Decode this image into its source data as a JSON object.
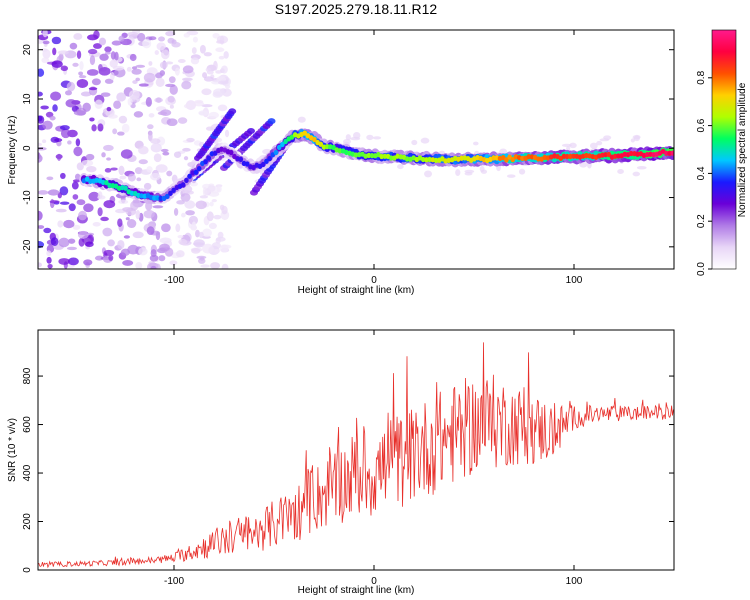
{
  "title": "S197.2025.279.18.11.R12",
  "chart_data": [
    {
      "type": "heatmap",
      "panel": "spectrogram",
      "title": "S197.2025.279.18.11.R12",
      "xlabel": "Height of straight line (km)",
      "ylabel": "Frequency (Hz)",
      "xlim": [
        -168,
        150
      ],
      "ylim": [
        -24.5,
        24
      ],
      "xticks": [
        -100,
        0,
        100
      ],
      "xtick_labels": [
        "-100",
        "0",
        "100"
      ],
      "yticks": [
        -20,
        -10,
        0,
        10,
        20
      ],
      "ytick_labels": [
        "-20",
        "-10",
        "0",
        "10",
        "20"
      ],
      "ridge_x": [
        -140,
        -130,
        -120,
        -112,
        -105,
        -100,
        -95,
        -90,
        -85,
        -80,
        -75,
        -70,
        -65,
        -60,
        -55,
        -50,
        -45,
        -40,
        -35,
        -30,
        -25,
        -20,
        -15,
        -10,
        -5,
        0,
        10,
        20,
        30,
        40,
        50,
        60,
        70,
        80,
        90,
        100,
        110,
        120,
        130,
        140,
        148
      ],
      "ridge_y": [
        -6.5,
        -7.5,
        -9,
        -10,
        -10,
        -8.5,
        -7,
        -5,
        -3,
        -1,
        0,
        -1.5,
        -3,
        -4,
        -3,
        -1,
        1,
        2.5,
        3,
        2,
        0.5,
        0,
        -0.5,
        -1,
        -1.5,
        -1.5,
        -1.8,
        -2,
        -2.2,
        -2.3,
        -2.2,
        -2.2,
        -2,
        -2,
        -1.8,
        -1.7,
        -1.6,
        -1.5,
        -1.3,
        -1,
        -0.8
      ],
      "ridge_amplitude": [
        0.4,
        0.5,
        0.45,
        0.4,
        0.35,
        0.3,
        0.3,
        0.3,
        0.35,
        0.3,
        0.25,
        0.25,
        0.3,
        0.3,
        0.3,
        0.35,
        0.45,
        0.6,
        0.7,
        0.75,
        0.6,
        0.55,
        0.55,
        0.55,
        0.6,
        0.6,
        0.6,
        0.6,
        0.65,
        0.65,
        0.7,
        0.75,
        0.8,
        0.8,
        0.85,
        0.85,
        0.85,
        0.9,
        0.9,
        0.95,
        0.95
      ],
      "colorbar": {
        "label": "Normalized spectral amplitude",
        "range": [
          0,
          1
        ],
        "ticks": [
          0.0,
          0.2,
          0.4,
          0.6,
          0.8
        ],
        "tick_labels": [
          "0.0",
          "0.2",
          "0.4",
          "0.6",
          "0.8"
        ],
        "colors": [
          "#ffffff",
          "#e8d6f7",
          "#b07be6",
          "#6a00d8",
          "#1a1aff",
          "#00c8ff",
          "#00ff60",
          "#b0ff00",
          "#ffd000",
          "#ff5000",
          "#ff0040",
          "#ff1a8c"
        ]
      }
    },
    {
      "type": "line",
      "panel": "snr",
      "xlabel": "Height of straight line (km)",
      "ylabel": "SNR (10 * v/v)",
      "xlim": [
        -168,
        150
      ],
      "ylim": [
        0,
        990
      ],
      "xticks": [
        -100,
        0,
        100
      ],
      "xtick_labels": [
        "-100",
        "0",
        "100"
      ],
      "yticks": [
        0,
        200,
        400,
        600,
        800
      ],
      "ytick_labels": [
        "0",
        "200",
        "400",
        "600",
        "800"
      ],
      "series": [
        {
          "name": "SNR",
          "color": "#e8302b",
          "x": [
            -168,
            -150,
            -130,
            -110,
            -100,
            -90,
            -80,
            -70,
            -60,
            -50,
            -40,
            -30,
            -20,
            -10,
            0,
            10,
            20,
            30,
            40,
            50,
            60,
            70,
            80,
            90,
            100,
            110,
            120,
            130,
            140,
            150
          ],
          "y": [
            20,
            25,
            30,
            40,
            50,
            80,
            110,
            140,
            150,
            190,
            230,
            290,
            340,
            390,
            400,
            440,
            480,
            520,
            560,
            600,
            610,
            600,
            580,
            570,
            630,
            640,
            645,
            645,
            650,
            650
          ],
          "spread": [
            10,
            10,
            12,
            15,
            20,
            40,
            60,
            80,
            80,
            100,
            120,
            140,
            160,
            180,
            190,
            200,
            200,
            210,
            210,
            210,
            200,
            170,
            150,
            120,
            50,
            40,
            35,
            30,
            30,
            30
          ]
        }
      ]
    }
  ]
}
